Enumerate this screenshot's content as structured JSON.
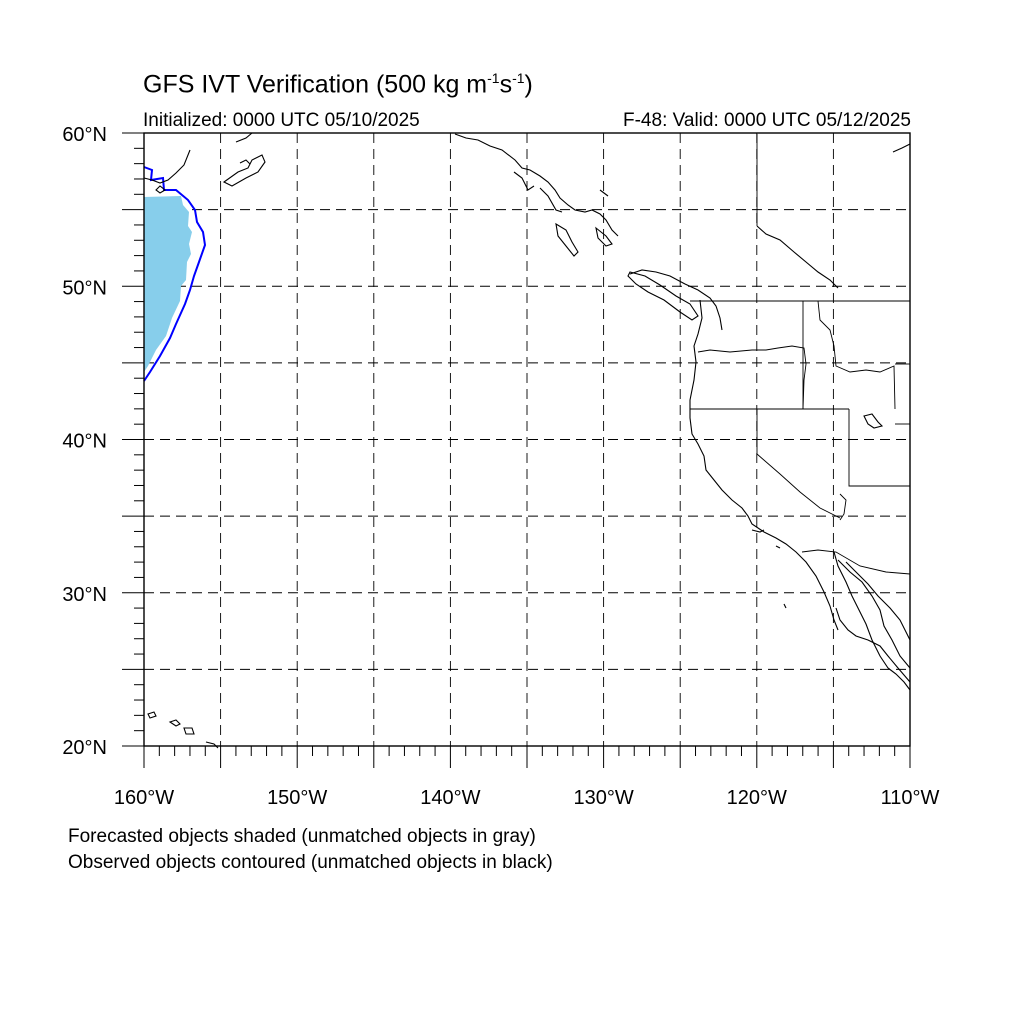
{
  "title": "GFS IVT Verification (500 kg m",
  "title_exp1": "-1",
  "title_mid": "s",
  "title_exp2": "-1",
  "title_end": ")",
  "initialized": "Initialized: 0000 UTC 05/10/2025",
  "valid": "F-48: Valid: 0000 UTC 05/12/2025",
  "notes": {
    "forecast": "Forecasted objects shaded (unmatched objects in gray)",
    "observed": "Observed objects contoured (unmatched objects in black)"
  },
  "map": {
    "lon_range": [
      -160,
      -110
    ],
    "lat_range": [
      20,
      60
    ],
    "lat_labels": [
      {
        "lat": 60,
        "text": "60°N"
      },
      {
        "lat": 50,
        "text": "50°N"
      },
      {
        "lat": 40,
        "text": "40°N"
      },
      {
        "lat": 30,
        "text": "30°N"
      },
      {
        "lat": 20,
        "text": "20°N"
      }
    ],
    "lon_labels": [
      {
        "lon": -160,
        "text": "160°W"
      },
      {
        "lon": -150,
        "text": "150°W"
      },
      {
        "lon": -140,
        "text": "140°W"
      },
      {
        "lon": -130,
        "text": "130°W"
      },
      {
        "lon": -120,
        "text": "120°W"
      },
      {
        "lon": -110,
        "text": "110°W"
      }
    ],
    "forecast_fill_color": "#87ceeb",
    "observed_contour_color": "#0000ff",
    "coast_color": "#000000",
    "grid_color": "#000000"
  }
}
